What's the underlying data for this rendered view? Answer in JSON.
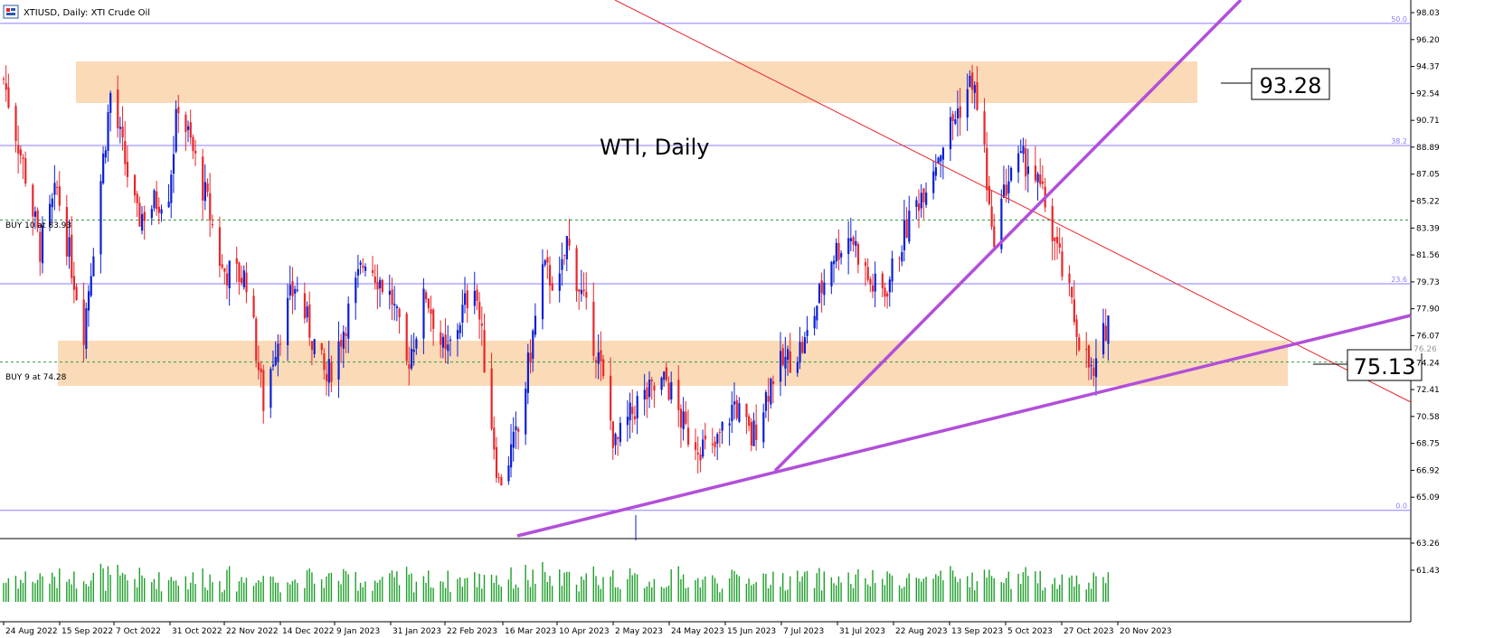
{
  "window": {
    "title": "XTIUSD, Daily:  XTI Crude Oil",
    "icon": "chart-window-icon"
  },
  "annotations": {
    "chart_label": "WTI, Daily",
    "box_high": "93.28",
    "box_low": "75.13",
    "order_buy_10": "BUY 10 at 83.93",
    "order_buy_9": "BUY 9 at 74.28",
    "current_price": "76.26"
  },
  "colors": {
    "bull": "#0b1fd6",
    "bear": "#e8262a",
    "volume": "#1e9e2a",
    "zone": "#fbd6b0",
    "fib": "#8a7dff",
    "trend": "#b24fd9",
    "resistance": "#e8262a",
    "order_line": "#2e9e3e"
  },
  "chart_data": {
    "type": "candlestick",
    "title": "XTIUSD, Daily:  XTI Crude Oil",
    "y_ticks": [
      "98.03",
      "96.20",
      "94.37",
      "92.54",
      "90.71",
      "88.89",
      "87.05",
      "85.22",
      "83.39",
      "81.56",
      "79.73",
      "77.90",
      "76.07",
      "74.24",
      "72.41",
      "70.58",
      "68.75",
      "66.92",
      "65.09",
      "63.26",
      "61.43"
    ],
    "ylim": [
      63.26,
      98.03
    ],
    "x_ticks": [
      "24 Aug 2022",
      "15 Sep 2022",
      "7 Oct 2022",
      "31 Oct 2022",
      "22 Nov 2022",
      "14 Dec 2022",
      "9 Jan 2023",
      "31 Jan 2023",
      "22 Feb 2023",
      "16 Mar 2023",
      "10 Apr 2023",
      "2 May 2023",
      "24 May 2023",
      "15 Jun 2023",
      "7 Jul 2023",
      "31 Jul 2023",
      "22 Aug 2023",
      "13 Sep 2023",
      "5 Oct 2023",
      "27 Oct 2023",
      "20 Nov 2023"
    ],
    "fib_levels": [
      {
        "label": "50.0",
        "price": 97.3
      },
      {
        "label": "38.2",
        "price": 89.0
      },
      {
        "label": "23.6",
        "price": 79.6
      },
      {
        "label": "0.0",
        "price": 64.2
      }
    ],
    "zones": [
      {
        "name": "upper-resistance-zone",
        "from": 92.0,
        "to": 94.8
      },
      {
        "name": "lower-support-zone",
        "from": 73.4,
        "to": 76.6
      }
    ],
    "order_levels": [
      83.93,
      74.28
    ],
    "current_price": 76.26,
    "levels_marked": [
      93.28,
      75.13
    ],
    "series": [
      {
        "name": "XTIUSD",
        "anchors": [
          {
            "date": "2022-08-24",
            "close": 93.5
          },
          {
            "date": "2022-09-02",
            "close": 87.0
          },
          {
            "date": "2022-09-08",
            "close": 82.0
          },
          {
            "date": "2022-09-15",
            "close": 86.0
          },
          {
            "date": "2022-09-26",
            "close": 76.5
          },
          {
            "date": "2022-10-07",
            "close": 92.5
          },
          {
            "date": "2022-10-18",
            "close": 84.0
          },
          {
            "date": "2022-10-31",
            "close": 86.0
          },
          {
            "date": "2022-11-04",
            "close": 92.0
          },
          {
            "date": "2022-11-16",
            "close": 85.0
          },
          {
            "date": "2022-11-22",
            "close": 80.5
          },
          {
            "date": "2022-12-02",
            "close": 80.0
          },
          {
            "date": "2022-12-09",
            "close": 71.5
          },
          {
            "date": "2022-12-14",
            "close": 75.5
          },
          {
            "date": "2022-12-22",
            "close": 79.5
          },
          {
            "date": "2023-01-04",
            "close": 73.0
          },
          {
            "date": "2023-01-09",
            "close": 75.5
          },
          {
            "date": "2023-01-20",
            "close": 81.5
          },
          {
            "date": "2023-01-31",
            "close": 78.5
          },
          {
            "date": "2023-02-06",
            "close": 74.0
          },
          {
            "date": "2023-02-14",
            "close": 79.0
          },
          {
            "date": "2023-02-22",
            "close": 74.5
          },
          {
            "date": "2023-03-06",
            "close": 80.0
          },
          {
            "date": "2023-03-16",
            "close": 66.0
          },
          {
            "date": "2023-03-24",
            "close": 69.5
          },
          {
            "date": "2023-04-03",
            "close": 80.5
          },
          {
            "date": "2023-04-10",
            "close": 79.5
          },
          {
            "date": "2023-04-13",
            "close": 82.5
          },
          {
            "date": "2023-04-26",
            "close": 74.5
          },
          {
            "date": "2023-05-03",
            "close": 68.5
          },
          {
            "date": "2023-05-12",
            "close": 71.5
          },
          {
            "date": "2023-05-24",
            "close": 73.0
          },
          {
            "date": "2023-06-01",
            "close": 69.5
          },
          {
            "date": "2023-06-12",
            "close": 68.0
          },
          {
            "date": "2023-06-21",
            "close": 71.5
          },
          {
            "date": "2023-06-28",
            "close": 69.0
          },
          {
            "date": "2023-07-07",
            "close": 73.5
          },
          {
            "date": "2023-07-20",
            "close": 75.5
          },
          {
            "date": "2023-07-31",
            "close": 81.5
          },
          {
            "date": "2023-08-08",
            "close": 83.0
          },
          {
            "date": "2023-08-16",
            "close": 79.5
          },
          {
            "date": "2023-08-22",
            "close": 79.0
          },
          {
            "date": "2023-08-31",
            "close": 83.5
          },
          {
            "date": "2023-09-13",
            "close": 88.5
          },
          {
            "date": "2023-09-27",
            "close": 93.5
          },
          {
            "date": "2023-10-02",
            "close": 88.5
          },
          {
            "date": "2023-10-05",
            "close": 82.5
          },
          {
            "date": "2023-10-13",
            "close": 87.5
          },
          {
            "date": "2023-10-20",
            "close": 88.0
          },
          {
            "date": "2023-10-27",
            "close": 85.0
          },
          {
            "date": "2023-11-03",
            "close": 80.5
          },
          {
            "date": "2023-11-10",
            "close": 76.0
          },
          {
            "date": "2023-11-16",
            "close": 73.0
          },
          {
            "date": "2023-11-22",
            "close": 77.5
          }
        ]
      }
    ],
    "grid": false,
    "legend": "none"
  }
}
